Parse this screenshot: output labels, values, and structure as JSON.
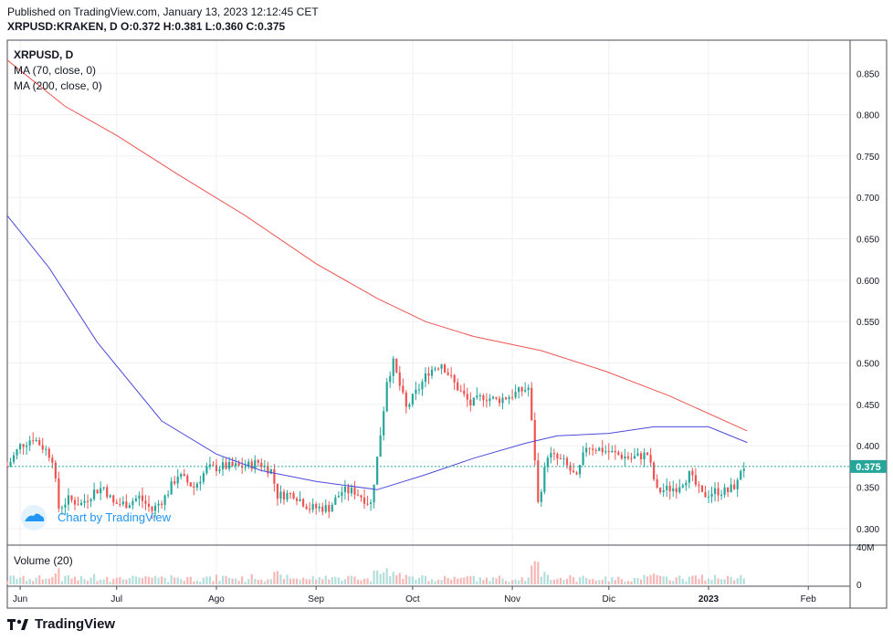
{
  "header": {
    "published": "Published on TradingView.com, January 13, 2023 12:12:45 CET",
    "symbol": "XRPUSD:KRAKEN, D",
    "o_label": "O:",
    "o": "0.372",
    "h_label": "H:",
    "h": "0.381",
    "l_label": "L:",
    "l": "0.360",
    "c_label": "C:",
    "c": "0.375"
  },
  "legend": {
    "symbol": "XRPUSD, D",
    "ma70": "MA (70, close, 0)",
    "ma200": "MA (200, close, 0)",
    "volume": "Volume (20)"
  },
  "watermark": "Chart by TradingView",
  "footer_brand": "TradingView",
  "colors": {
    "up": "#26a69a",
    "down": "#ef5350",
    "up_volume": "#b2dfdb",
    "down_volume": "#f7b7b6",
    "ma70": "#4b4bdc",
    "ma200": "#ef5350",
    "last_price": "#26a69a",
    "grid": "#eef0f3",
    "axis_text": "#131722"
  },
  "chart_data": {
    "type": "candlestick",
    "symbol": "XRPUSD",
    "interval": "D",
    "x_range": [
      "2022-05-28",
      "2023-02-14"
    ],
    "y_range": [
      0.28,
      0.89
    ],
    "price_ticks": [
      "0.300",
      "0.350",
      "0.400",
      "0.450",
      "0.500",
      "0.550",
      "0.600",
      "0.650",
      "0.700",
      "0.750",
      "0.800",
      "0.850"
    ],
    "month_ticks": [
      {
        "label": "Jun",
        "date": "2022-06-01"
      },
      {
        "label": "Jul",
        "date": "2022-07-01"
      },
      {
        "label": "Ago",
        "date": "2022-08-01"
      },
      {
        "label": "Sep",
        "date": "2022-09-01"
      },
      {
        "label": "Oct",
        "date": "2022-10-01"
      },
      {
        "label": "Nov",
        "date": "2022-11-01"
      },
      {
        "label": "Dic",
        "date": "2022-12-01"
      },
      {
        "label": "2023",
        "date": "2023-01-01"
      },
      {
        "label": "Feb",
        "date": "2023-02-01"
      }
    ],
    "volume_ticks": [
      "0",
      "40M"
    ],
    "volume_max": 40,
    "last_price": "0.375",
    "close_waypoints": [
      [
        "2022-05-28",
        0.375
      ],
      [
        "2022-06-01",
        0.4
      ],
      [
        "2022-06-05",
        0.41
      ],
      [
        "2022-06-09",
        0.395
      ],
      [
        "2022-06-11",
        0.385
      ],
      [
        "2022-06-13",
        0.325
      ],
      [
        "2022-06-16",
        0.335
      ],
      [
        "2022-06-20",
        0.33
      ],
      [
        "2022-06-24",
        0.345
      ],
      [
        "2022-06-27",
        0.35
      ],
      [
        "2022-06-30",
        0.33
      ],
      [
        "2022-07-04",
        0.33
      ],
      [
        "2022-07-08",
        0.338
      ],
      [
        "2022-07-12",
        0.322
      ],
      [
        "2022-07-16",
        0.338
      ],
      [
        "2022-07-20",
        0.365
      ],
      [
        "2022-07-25",
        0.35
      ],
      [
        "2022-07-29",
        0.372
      ],
      [
        "2022-08-03",
        0.375
      ],
      [
        "2022-08-10",
        0.375
      ],
      [
        "2022-08-14",
        0.38
      ],
      [
        "2022-08-18",
        0.37
      ],
      [
        "2022-08-20",
        0.34
      ],
      [
        "2022-08-25",
        0.342
      ],
      [
        "2022-08-30",
        0.325
      ],
      [
        "2022-09-05",
        0.325
      ],
      [
        "2022-09-09",
        0.345
      ],
      [
        "2022-09-13",
        0.345
      ],
      [
        "2022-09-18",
        0.33
      ],
      [
        "2022-09-20",
        0.385
      ],
      [
        "2022-09-22",
        0.445
      ],
      [
        "2022-09-23",
        0.48
      ],
      [
        "2022-09-25",
        0.5
      ],
      [
        "2022-09-29",
        0.445
      ],
      [
        "2022-10-03",
        0.47
      ],
      [
        "2022-10-06",
        0.49
      ],
      [
        "2022-10-10",
        0.5
      ],
      [
        "2022-10-14",
        0.475
      ],
      [
        "2022-10-19",
        0.45
      ],
      [
        "2022-10-23",
        0.46
      ],
      [
        "2022-10-27",
        0.455
      ],
      [
        "2022-10-31",
        0.46
      ],
      [
        "2022-11-03",
        0.465
      ],
      [
        "2022-11-06",
        0.47
      ],
      [
        "2022-11-08",
        0.385
      ],
      [
        "2022-11-09",
        0.33
      ],
      [
        "2022-11-12",
        0.39
      ],
      [
        "2022-11-17",
        0.38
      ],
      [
        "2022-11-21",
        0.36
      ],
      [
        "2022-11-24",
        0.4
      ],
      [
        "2022-11-29",
        0.395
      ],
      [
        "2022-12-03",
        0.39
      ],
      [
        "2022-12-08",
        0.385
      ],
      [
        "2022-12-13",
        0.39
      ],
      [
        "2022-12-16",
        0.345
      ],
      [
        "2022-12-22",
        0.35
      ],
      [
        "2022-12-26",
        0.365
      ],
      [
        "2022-12-30",
        0.34
      ],
      [
        "2023-01-03",
        0.345
      ],
      [
        "2023-01-07",
        0.345
      ],
      [
        "2023-01-10",
        0.355
      ],
      [
        "2023-01-11",
        0.372
      ],
      [
        "2023-01-12",
        0.375
      ]
    ],
    "ma70": [
      [
        "2022-05-28",
        0.678
      ],
      [
        "2022-06-10",
        0.615
      ],
      [
        "2022-06-25",
        0.525
      ],
      [
        "2022-07-15",
        0.43
      ],
      [
        "2022-08-01",
        0.39
      ],
      [
        "2022-08-15",
        0.37
      ],
      [
        "2022-09-01",
        0.357
      ],
      [
        "2022-09-20",
        0.347
      ],
      [
        "2022-10-05",
        0.365
      ],
      [
        "2022-10-20",
        0.385
      ],
      [
        "2022-11-05",
        0.403
      ],
      [
        "2022-11-15",
        0.412
      ],
      [
        "2022-12-01",
        0.415
      ],
      [
        "2022-12-15",
        0.423
      ],
      [
        "2023-01-01",
        0.423
      ],
      [
        "2023-01-13",
        0.404
      ]
    ],
    "ma200": [
      [
        "2022-05-28",
        0.866
      ],
      [
        "2022-06-15",
        0.81
      ],
      [
        "2022-07-01",
        0.775
      ],
      [
        "2022-07-20",
        0.728
      ],
      [
        "2022-08-10",
        0.678
      ],
      [
        "2022-09-01",
        0.62
      ],
      [
        "2022-09-20",
        0.578
      ],
      [
        "2022-10-05",
        0.55
      ],
      [
        "2022-10-20",
        0.532
      ],
      [
        "2022-11-10",
        0.515
      ],
      [
        "2022-11-30",
        0.49
      ],
      [
        "2022-12-20",
        0.46
      ],
      [
        "2023-01-13",
        0.418
      ]
    ]
  }
}
